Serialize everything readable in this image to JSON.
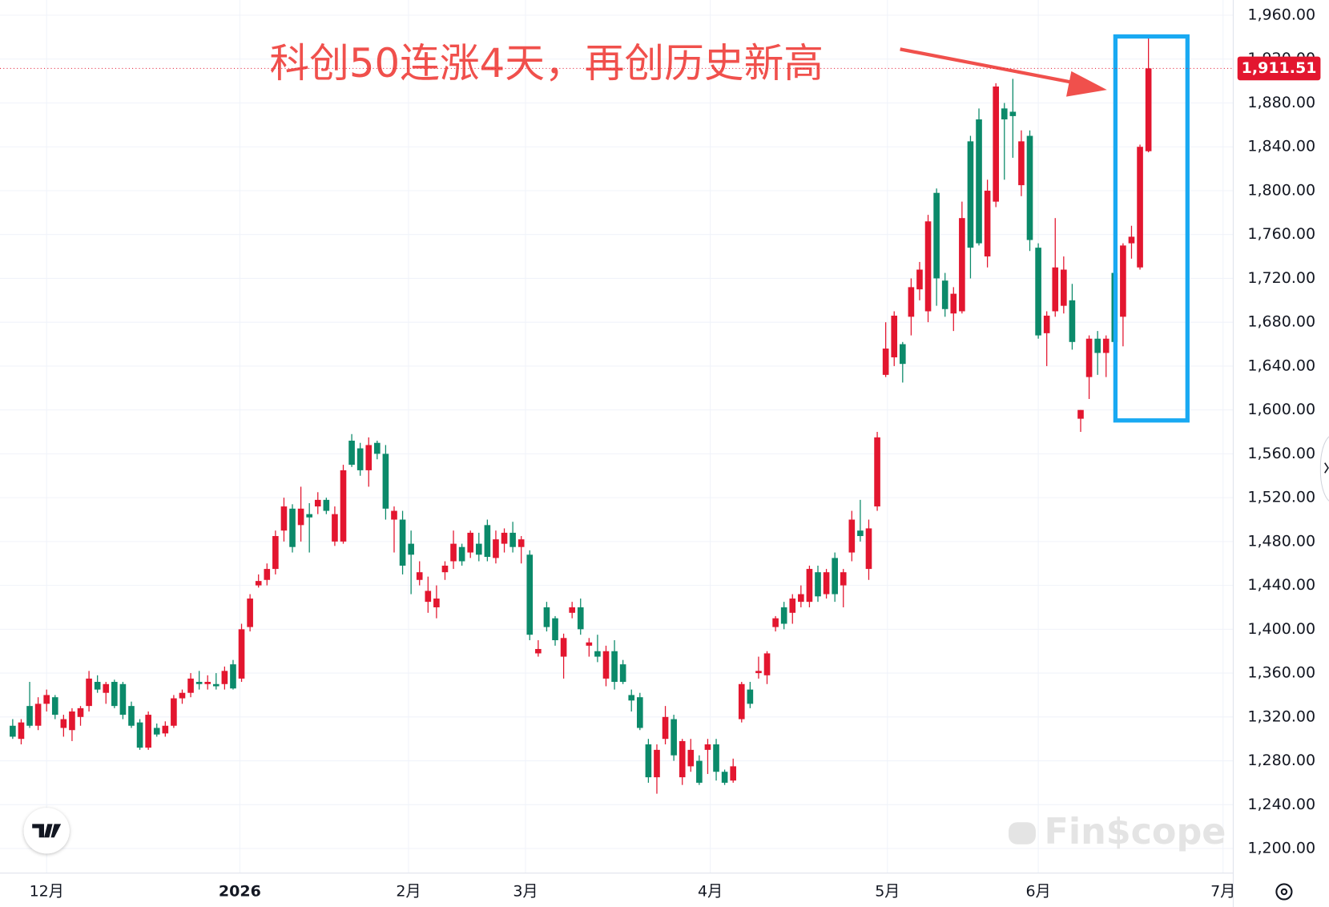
{
  "chart_data": {
    "type": "candlestick",
    "annotation": "科创50连涨4天，再创历史新高",
    "watermark": "Fin$cope",
    "up_color": "#e3162f",
    "down_color": "#0b8a6a",
    "last_price": {
      "value": 1911.51,
      "label": "1,911.51"
    },
    "grid": true,
    "xlim": [
      -1.5,
      144
    ],
    "xticks": [
      {
        "value": 4,
        "label": "12月"
      },
      {
        "value": 26.8,
        "label": "2026"
      },
      {
        "value": 46.7,
        "label": "2月"
      },
      {
        "value": 60.5,
        "label": "3月"
      },
      {
        "value": 82.3,
        "label": "4月"
      },
      {
        "value": 103.2,
        "label": "5月"
      },
      {
        "value": 121,
        "label": "6月"
      },
      {
        "value": 142.8,
        "label": "7月"
      }
    ],
    "ylim": [
      1177.6,
      1973.9
    ],
    "yticks": [
      {
        "value": 1200,
        "label": "1,200.00"
      },
      {
        "value": 1240,
        "label": "1,240.00"
      },
      {
        "value": 1280,
        "label": "1,280.00"
      },
      {
        "value": 1320,
        "label": "1,320.00"
      },
      {
        "value": 1360,
        "label": "1,360.00"
      },
      {
        "value": 1400,
        "label": "1,400.00"
      },
      {
        "value": 1440,
        "label": "1,440.00"
      },
      {
        "value": 1480,
        "label": "1,480.00"
      },
      {
        "value": 1520,
        "label": "1,520.00"
      },
      {
        "value": 1560,
        "label": "1,560.00"
      },
      {
        "value": 1600,
        "label": "1,600.00"
      },
      {
        "value": 1640,
        "label": "1,640.00"
      },
      {
        "value": 1680,
        "label": "1,680.00"
      },
      {
        "value": 1720,
        "label": "1,720.00"
      },
      {
        "value": 1760,
        "label": "1,760.00"
      },
      {
        "value": 1800,
        "label": "1,800.00"
      },
      {
        "value": 1840,
        "label": "1,840.00"
      },
      {
        "value": 1880,
        "label": "1,880.00"
      },
      {
        "value": 1920,
        "label": "1,920.00"
      },
      {
        "value": 1960,
        "label": "1,960.00"
      }
    ],
    "ohlc": [
      [
        1312,
        1318,
        1300,
        1302
      ],
      [
        1300,
        1318,
        1295,
        1315
      ],
      [
        1330,
        1352,
        1310,
        1312
      ],
      [
        1312,
        1338,
        1308,
        1332
      ],
      [
        1332,
        1345,
        1325,
        1340
      ],
      [
        1338,
        1340,
        1318,
        1322
      ],
      [
        1310,
        1322,
        1302,
        1318
      ],
      [
        1308,
        1328,
        1298,
        1325
      ],
      [
        1320,
        1330,
        1312,
        1328
      ],
      [
        1330,
        1362,
        1325,
        1355
      ],
      [
        1352,
        1358,
        1342,
        1345
      ],
      [
        1342,
        1352,
        1332,
        1350
      ],
      [
        1352,
        1354,
        1328,
        1330
      ],
      [
        1350,
        1352,
        1318,
        1322
      ],
      [
        1330,
        1334,
        1310,
        1312
      ],
      [
        1315,
        1318,
        1290,
        1292
      ],
      [
        1292,
        1325,
        1290,
        1322
      ],
      [
        1310,
        1314,
        1302,
        1304
      ],
      [
        1305,
        1316,
        1302,
        1312
      ],
      [
        1312,
        1340,
        1310,
        1337
      ],
      [
        1337,
        1345,
        1332,
        1342
      ],
      [
        1342,
        1360,
        1338,
        1355
      ],
      [
        1352,
        1362,
        1345,
        1350
      ],
      [
        1350,
        1358,
        1345,
        1352
      ],
      [
        1350,
        1360,
        1345,
        1348
      ],
      [
        1350,
        1366,
        1345,
        1362
      ],
      [
        1368,
        1372,
        1345,
        1346
      ],
      [
        1355,
        1405,
        1352,
        1400
      ],
      [
        1402,
        1432,
        1398,
        1428
      ],
      [
        1440,
        1450,
        1438,
        1444
      ],
      [
        1445,
        1460,
        1440,
        1455
      ],
      [
        1455,
        1490,
        1450,
        1485
      ],
      [
        1490,
        1520,
        1480,
        1512
      ],
      [
        1510,
        1514,
        1470,
        1475
      ],
      [
        1495,
        1530,
        1480,
        1510
      ],
      [
        1505,
        1515,
        1470,
        1502
      ],
      [
        1512,
        1525,
        1505,
        1518
      ],
      [
        1518,
        1520,
        1505,
        1508
      ],
      [
        1480,
        1512,
        1476,
        1505
      ],
      [
        1480,
        1550,
        1478,
        1545
      ],
      [
        1572,
        1578,
        1548,
        1550
      ],
      [
        1565,
        1570,
        1540,
        1545
      ],
      [
        1545,
        1575,
        1530,
        1568
      ],
      [
        1570,
        1572,
        1555,
        1560
      ],
      [
        1560,
        1568,
        1500,
        1510
      ],
      [
        1500,
        1512,
        1470,
        1508
      ],
      [
        1500,
        1508,
        1450,
        1458
      ],
      [
        1478,
        1490,
        1432,
        1468
      ],
      [
        1445,
        1462,
        1440,
        1452
      ],
      [
        1425,
        1448,
        1415,
        1435
      ],
      [
        1420,
        1440,
        1410,
        1428
      ],
      [
        1452,
        1462,
        1445,
        1458
      ],
      [
        1462,
        1490,
        1455,
        1478
      ],
      [
        1475,
        1478,
        1458,
        1462
      ],
      [
        1470,
        1490,
        1465,
        1488
      ],
      [
        1478,
        1488,
        1462,
        1468
      ],
      [
        1495,
        1500,
        1462,
        1466
      ],
      [
        1465,
        1490,
        1460,
        1482
      ],
      [
        1478,
        1492,
        1470,
        1488
      ],
      [
        1488,
        1498,
        1470,
        1475
      ],
      [
        1475,
        1485,
        1460,
        1482
      ],
      [
        1468,
        1472,
        1390,
        1395
      ],
      [
        1378,
        1390,
        1375,
        1382
      ],
      [
        1420,
        1425,
        1398,
        1402
      ],
      [
        1410,
        1412,
        1385,
        1390
      ],
      [
        1375,
        1396,
        1355,
        1392
      ],
      [
        1415,
        1425,
        1410,
        1420
      ],
      [
        1420,
        1428,
        1395,
        1400
      ],
      [
        1385,
        1392,
        1375,
        1388
      ],
      [
        1380,
        1395,
        1370,
        1375
      ],
      [
        1355,
        1385,
        1348,
        1380
      ],
      [
        1380,
        1390,
        1345,
        1352
      ],
      [
        1368,
        1372,
        1350,
        1352
      ],
      [
        1340,
        1345,
        1325,
        1335
      ],
      [
        1338,
        1342,
        1308,
        1310
      ],
      [
        1295,
        1300,
        1260,
        1265
      ],
      [
        1265,
        1295,
        1250,
        1290
      ],
      [
        1300,
        1330,
        1295,
        1320
      ],
      [
        1318,
        1322,
        1280,
        1285
      ],
      [
        1265,
        1300,
        1258,
        1298
      ],
      [
        1275,
        1300,
        1270,
        1290
      ],
      [
        1280,
        1285,
        1258,
        1260
      ],
      [
        1290,
        1300,
        1268,
        1295
      ],
      [
        1295,
        1300,
        1262,
        1270
      ],
      [
        1270,
        1272,
        1258,
        1260
      ],
      [
        1262,
        1282,
        1260,
        1275
      ],
      [
        1318,
        1352,
        1315,
        1350
      ],
      [
        1345,
        1352,
        1328,
        1332
      ],
      [
        1360,
        1375,
        1355,
        1362
      ],
      [
        1358,
        1380,
        1350,
        1378
      ],
      [
        1402,
        1412,
        1398,
        1410
      ],
      [
        1420,
        1425,
        1400,
        1405
      ],
      [
        1415,
        1432,
        1405,
        1428
      ],
      [
        1425,
        1440,
        1420,
        1432
      ],
      [
        1425,
        1458,
        1420,
        1455
      ],
      [
        1452,
        1458,
        1425,
        1430
      ],
      [
        1432,
        1455,
        1428,
        1452
      ],
      [
        1465,
        1470,
        1425,
        1432
      ],
      [
        1440,
        1455,
        1420,
        1452
      ],
      [
        1470,
        1508,
        1462,
        1500
      ],
      [
        1490,
        1518,
        1480,
        1485
      ],
      [
        1455,
        1500,
        1445,
        1492
      ],
      [
        1512,
        1580,
        1508,
        1575
      ],
      [
        1632,
        1680,
        1630,
        1656
      ],
      [
        1648,
        1690,
        1640,
        1686
      ],
      [
        1660,
        1662,
        1625,
        1642
      ],
      [
        1685,
        1720,
        1668,
        1712
      ],
      [
        1710,
        1735,
        1700,
        1728
      ],
      [
        1690,
        1778,
        1680,
        1772
      ],
      [
        1798,
        1802,
        1695,
        1720
      ],
      [
        1718,
        1725,
        1685,
        1692
      ],
      [
        1688,
        1712,
        1672,
        1706
      ],
      [
        1690,
        1790,
        1688,
        1775
      ],
      [
        1845,
        1850,
        1720,
        1748
      ],
      [
        1865,
        1875,
        1750,
        1752
      ],
      [
        1740,
        1810,
        1730,
        1800
      ],
      [
        1790,
        1898,
        1785,
        1895
      ],
      [
        1875,
        1880,
        1810,
        1865
      ],
      [
        1872,
        1902,
        1830,
        1868
      ],
      [
        1805,
        1855,
        1795,
        1845
      ],
      [
        1850,
        1855,
        1745,
        1755
      ],
      [
        1748,
        1752,
        1665,
        1668
      ],
      [
        1670,
        1690,
        1640,
        1686
      ],
      [
        1690,
        1775,
        1685,
        1730
      ],
      [
        1695,
        1740,
        1688,
        1728
      ],
      [
        1700,
        1715,
        1655,
        1662
      ],
      [
        1592,
        1600,
        1580,
        1600
      ],
      [
        1630,
        1668,
        1610,
        1665
      ],
      [
        1665,
        1672,
        1632,
        1652
      ],
      [
        1652,
        1668,
        1630,
        1665
      ],
      [
        1725,
        1730,
        1645,
        1662
      ],
      [
        1685,
        1752,
        1658,
        1750
      ],
      [
        1752,
        1768,
        1738,
        1758
      ],
      [
        1730,
        1842,
        1728,
        1840
      ],
      [
        1836,
        1940,
        1835,
        1911.51
      ]
    ]
  }
}
